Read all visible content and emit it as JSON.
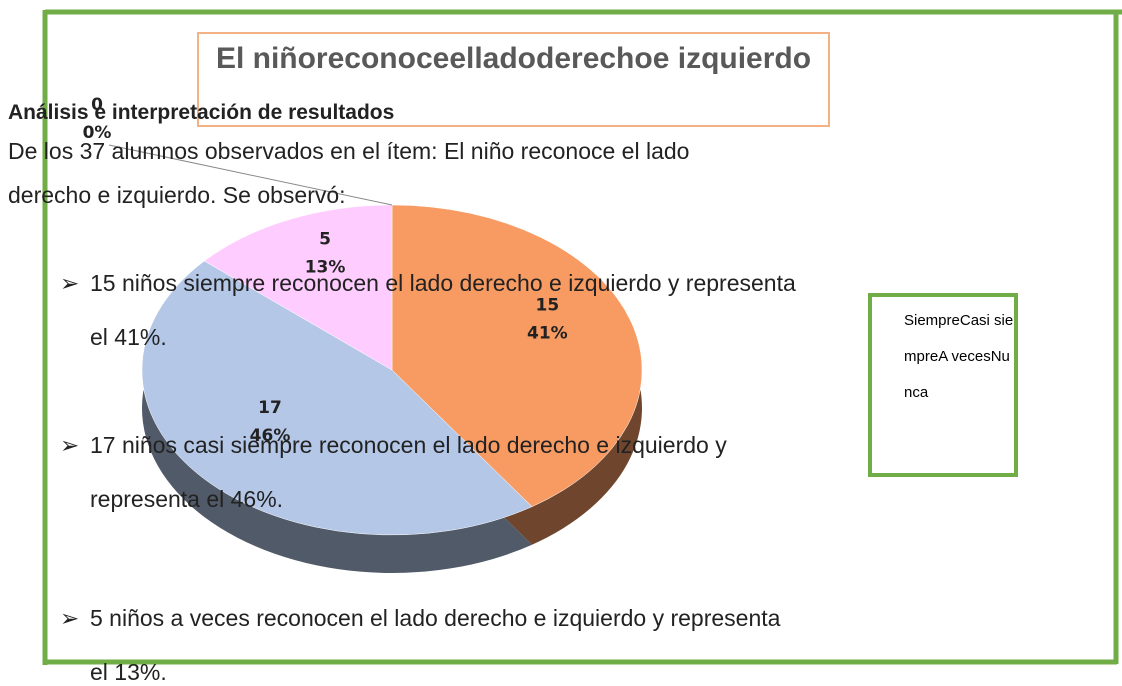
{
  "document": {
    "heading": "Análisis e interpretación de resultados",
    "paragraph": [
      "De los 37 alumnos observados en el ítem: El niño reconoce el lado",
      "derecho e izquierdo. Se observó:"
    ],
    "bullets": [
      [
        "15 niños siempre reconocen el lado derecho e izquierdo y representa",
        "el 41%."
      ],
      [
        "17 niños casi siempre reconocen el lado derecho e izquierdo y",
        "representa el 46%."
      ],
      [
        "5 niños a veces reconocen el lado derecho e izquierdo y representa",
        "el 13%."
      ]
    ]
  },
  "chart_data": {
    "type": "pie",
    "title": "El niñoreconoceelladoderechoe izquierdo",
    "categories": [
      "Siempre",
      "Casi siempre",
      "A veces",
      "Nunca"
    ],
    "values": [
      15,
      17,
      5,
      0
    ],
    "percentages": [
      41,
      46,
      13,
      0
    ],
    "percentage_labels": [
      "41%",
      "46%",
      "13%",
      "0%"
    ],
    "colors": [
      "#f79b63",
      "#b4c7e7",
      "#ffccff",
      "#a9d18e"
    ]
  }
}
